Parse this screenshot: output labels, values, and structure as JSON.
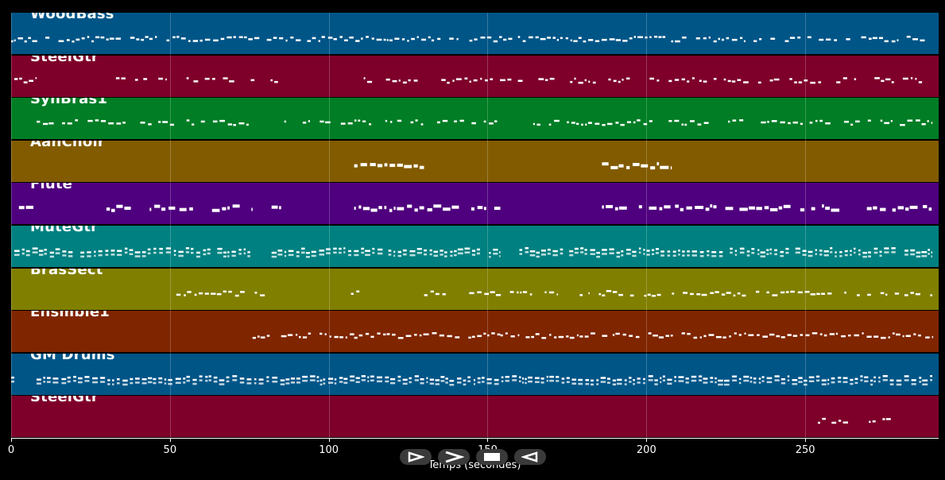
{
  "tracks": [
    {
      "name": "WoodBass",
      "color": "#005587",
      "density": 0.9,
      "segments": [
        [
          0,
          290
        ]
      ]
    },
    {
      "name": "SteelGtr",
      "color": "#7e002a",
      "density": 0.7,
      "segments": [
        [
          1,
          8
        ],
        [
          33,
          36
        ],
        [
          39,
          49
        ],
        [
          53,
          84
        ],
        [
          111,
          128
        ],
        [
          129,
          161
        ],
        [
          166,
          185
        ],
        [
          188,
          197
        ],
        [
          201,
          204
        ],
        [
          207,
          290
        ]
      ]
    },
    {
      "name": "SynBras1",
      "color": "#007d25",
      "density": 0.7,
      "segments": [
        [
          8,
          52
        ],
        [
          53,
          76
        ],
        [
          86,
          128
        ],
        [
          129,
          154
        ],
        [
          163,
          205
        ],
        [
          207,
          290
        ]
      ]
    },
    {
      "name": "AahChoir",
      "color": "#825b00",
      "density": 1.0,
      "segments": [
        [
          108,
          130
        ],
        [
          186,
          208
        ]
      ]
    },
    {
      "name": "Flute",
      "color": "#4f007e",
      "density": 0.8,
      "segments": [
        [
          1,
          7
        ],
        [
          30,
          52
        ],
        [
          53,
          76
        ],
        [
          82,
          85
        ],
        [
          108,
          130
        ],
        [
          131,
          154
        ],
        [
          160,
          162
        ],
        [
          186,
          208
        ],
        [
          209,
          290
        ]
      ]
    },
    {
      "name": "MuteGtr",
      "color": "#008080",
      "density": 0.95,
      "segments": [
        [
          1,
          76
        ],
        [
          82,
          154
        ],
        [
          160,
          290
        ]
      ]
    },
    {
      "name": "BrasSect",
      "color": "#807f00",
      "density": 0.8,
      "segments": [
        [
          52,
          85
        ],
        [
          107,
          110
        ],
        [
          130,
          164
        ],
        [
          168,
          172
        ],
        [
          179,
          182
        ],
        [
          185,
          205
        ],
        [
          208,
          290
        ]
      ]
    },
    {
      "name": "Ensmble1",
      "color": "#7f2500",
      "density": 0.9,
      "segments": [
        [
          76,
          82
        ],
        [
          85,
          108
        ],
        [
          108,
          154
        ],
        [
          154,
          160
        ],
        [
          162,
          185
        ],
        [
          186,
          290
        ]
      ]
    },
    {
      "name": "GM Drums",
      "color": "#005587",
      "density": 1.0,
      "segments": [
        [
          0,
          1
        ],
        [
          8,
          290
        ]
      ]
    },
    {
      "name": "SteelGtr",
      "color": "#7e002a",
      "density": 0.9,
      "segments": [
        [
          254,
          277
        ]
      ]
    }
  ],
  "axis": {
    "xmin": 0,
    "xmax": 292,
    "ticks": [
      0,
      50,
      100,
      150,
      200,
      250
    ],
    "tick_labels": [
      "0",
      "50",
      "100",
      "150",
      "200",
      "250"
    ],
    "xlabel": "Temps (secondes)"
  },
  "controls": [
    {
      "name": "play-icon"
    },
    {
      "name": "fast-forward-icon"
    },
    {
      "name": "stop-icon"
    },
    {
      "name": "rewind-icon"
    }
  ],
  "note_color": "#ffffff"
}
